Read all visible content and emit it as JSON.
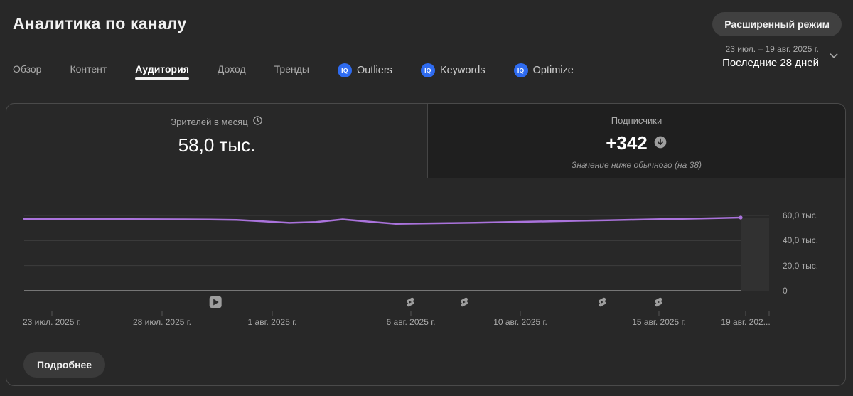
{
  "header": {
    "title": "Аналитика по каналу",
    "advanced_mode_button": "Расширенный режим",
    "tabs": [
      {
        "label": "Обзор",
        "active": false,
        "icon": null
      },
      {
        "label": "Контент",
        "active": false,
        "icon": null
      },
      {
        "label": "Аудитория",
        "active": true,
        "icon": null
      },
      {
        "label": "Доход",
        "active": false,
        "icon": null
      },
      {
        "label": "Тренды",
        "active": false,
        "icon": null
      },
      {
        "label": "Outliers",
        "active": false,
        "icon": "iq-badge"
      },
      {
        "label": "Keywords",
        "active": false,
        "icon": "iq-badge"
      },
      {
        "label": "Optimize",
        "active": false,
        "icon": "iq-badge"
      }
    ],
    "date_range": {
      "range_text": "23 июл. – 19 авг. 2025 г.",
      "preset_label": "Последние 28 дней"
    }
  },
  "metrics": {
    "viewers": {
      "label": "Зрителей в месяц",
      "value": "58,0 тыс.",
      "icon": "clock-icon"
    },
    "subscribers": {
      "label": "Подписчики",
      "value": "+342",
      "icon": "down-arrow-circle-icon",
      "note": "Значение ниже обычного (на 38)"
    }
  },
  "chart_data": {
    "type": "line",
    "title": "Зрителей в месяц",
    "x_start": "23 июл. 2025 г.",
    "x_end": "19 авг. 2025 г.",
    "x_tick_labels": [
      "23 июл. 2025 г.",
      "28 июл. 2025 г.",
      "1 авг. 2025 г.",
      "6 авг. 2025 г.",
      "10 авг. 2025 г.",
      "15 авг. 2025 г.",
      "19 авг. 202..."
    ],
    "y_tick_labels": [
      "60,0 тыс.",
      "40,0 тыс.",
      "20,0 тыс.",
      "0"
    ],
    "y_ticks": [
      60000,
      40000,
      20000,
      0
    ],
    "ylim": [
      0,
      66000
    ],
    "grid": "horizontal",
    "legend": "none",
    "values": [
      57200,
      57150,
      57100,
      57050,
      57000,
      56950,
      56900,
      56800,
      56500,
      55300,
      54100,
      54800,
      56900,
      55100,
      53400,
      53600,
      53900,
      54200,
      54600,
      55000,
      55400,
      55800,
      56200,
      56600,
      57000,
      57400,
      57800,
      58300
    ],
    "markers": [
      {
        "type": "video",
        "day": 7.21
      },
      {
        "type": "shorts",
        "day": 14.55
      },
      {
        "type": "shorts",
        "day": 16.58
      },
      {
        "type": "shorts",
        "day": 21.78
      },
      {
        "type": "shorts",
        "day": 23.9
      }
    ],
    "partial_data_band": {
      "from_day": 27,
      "note_visual_only": "lighter region at right edge"
    }
  },
  "footer": {
    "details_button": "Подробнее"
  },
  "colors": {
    "accent_line": "#aa73dc",
    "badge_blue": "#2e6bf0",
    "grid": "#3c3c3c",
    "baseline": "#8f8f8f",
    "band": "#313131",
    "icon_gray": "#9e9e9e"
  }
}
